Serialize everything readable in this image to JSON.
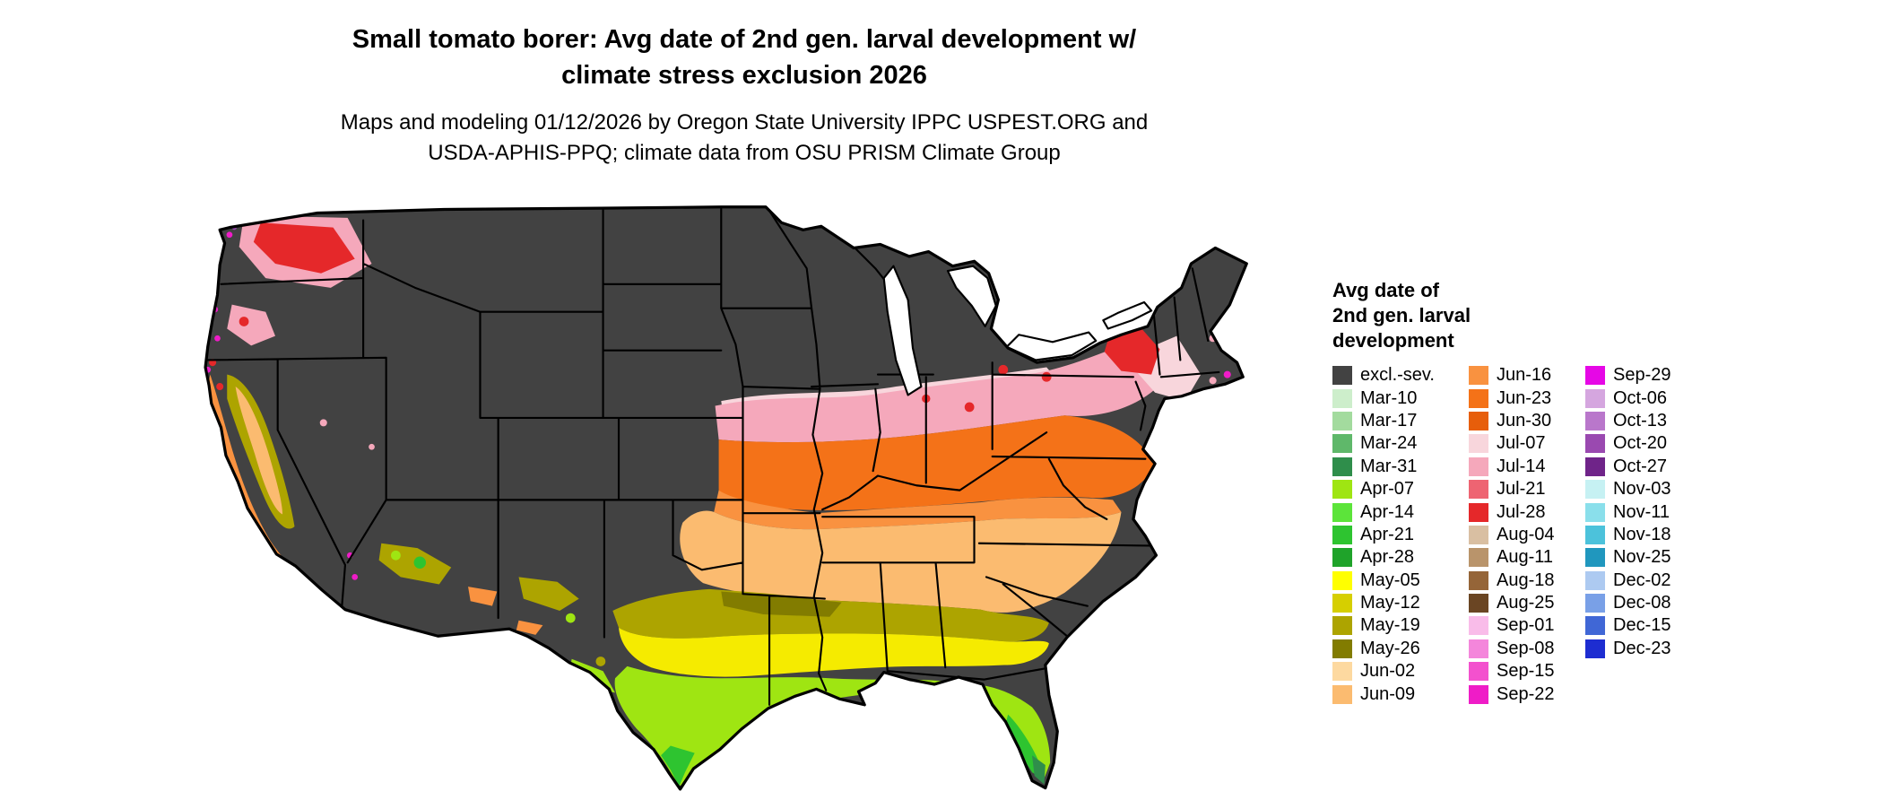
{
  "title": {
    "line1": "Small tomato borer: Avg date of 2nd gen. larval development w/",
    "line2": "climate stress exclusion 2026"
  },
  "subtitle": {
    "line1": "Maps and modeling 01/12/2026 by Oregon State University IPPC USPEST.ORG and",
    "line2": "USDA-APHIS-PPQ; climate data from OSU PRISM Climate Group"
  },
  "legend": {
    "title_lines": [
      "Avg date of",
      "2nd gen. larval",
      "development"
    ],
    "columns": [
      [
        {
          "label": "excl.-sev.",
          "color": "#424242"
        },
        {
          "label": "Mar-10",
          "color": "#CDEECB"
        },
        {
          "label": "Mar-17",
          "color": "#A3DB9E"
        },
        {
          "label": "Mar-24",
          "color": "#5FB86A"
        },
        {
          "label": "Mar-31",
          "color": "#2F8E4B"
        },
        {
          "label": "Apr-07",
          "color": "#9FE512"
        },
        {
          "label": "Apr-14",
          "color": "#5CE43A"
        },
        {
          "label": "Apr-21",
          "color": "#2EC430"
        },
        {
          "label": "Apr-28",
          "color": "#1FA32A"
        },
        {
          "label": "May-05",
          "color": "#FFFF00"
        },
        {
          "label": "May-12",
          "color": "#D6CF00"
        },
        {
          "label": "May-19",
          "color": "#ADA400"
        },
        {
          "label": "May-26",
          "color": "#827C00"
        },
        {
          "label": "Jun-02",
          "color": "#FDD9A0"
        },
        {
          "label": "Jun-09",
          "color": "#FBBB70"
        }
      ],
      [
        {
          "label": "Jun-16",
          "color": "#F99240"
        },
        {
          "label": "Jun-23",
          "color": "#F47218"
        },
        {
          "label": "Jun-30",
          "color": "#E75E0B"
        },
        {
          "label": "Jul-07",
          "color": "#F8D6DC"
        },
        {
          "label": "Jul-14",
          "color": "#F5A8BB"
        },
        {
          "label": "Jul-21",
          "color": "#EE6472"
        },
        {
          "label": "Jul-28",
          "color": "#E5282A"
        },
        {
          "label": "Aug-04",
          "color": "#D9BFA2"
        },
        {
          "label": "Aug-11",
          "color": "#B9946B"
        },
        {
          "label": "Aug-18",
          "color": "#956538"
        },
        {
          "label": "Aug-25",
          "color": "#6A4523"
        },
        {
          "label": "Sep-01",
          "color": "#F9BCE9"
        },
        {
          "label": "Sep-08",
          "color": "#F486DB"
        },
        {
          "label": "Sep-15",
          "color": "#F351CE"
        },
        {
          "label": "Sep-22",
          "color": "#EF1CC7"
        }
      ],
      [
        {
          "label": "Sep-29",
          "color": "#E607E6"
        },
        {
          "label": "Oct-06",
          "color": "#D5A6DF"
        },
        {
          "label": "Oct-13",
          "color": "#B977CB"
        },
        {
          "label": "Oct-20",
          "color": "#9A49B0"
        },
        {
          "label": "Oct-27",
          "color": "#6F2489"
        },
        {
          "label": "Nov-03",
          "color": "#C6F1F3"
        },
        {
          "label": "Nov-11",
          "color": "#8ADFEB"
        },
        {
          "label": "Nov-18",
          "color": "#4CC2DB"
        },
        {
          "label": "Nov-25",
          "color": "#2097BE"
        },
        {
          "label": "Dec-02",
          "color": "#ADCAF1"
        },
        {
          "label": "Dec-08",
          "color": "#79A0E7"
        },
        {
          "label": "Dec-15",
          "color": "#4067D6"
        },
        {
          "label": "Dec-23",
          "color": "#1D2DD1"
        }
      ]
    ]
  }
}
